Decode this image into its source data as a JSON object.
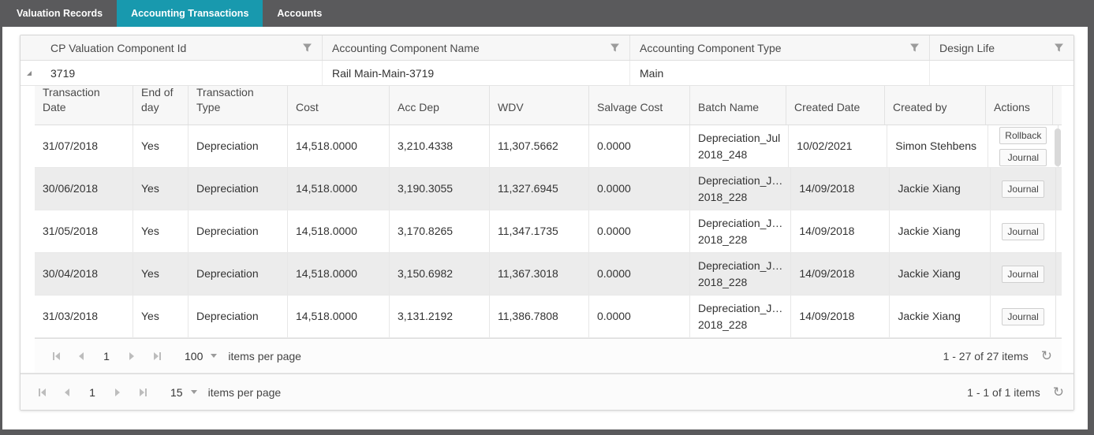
{
  "colors": {
    "accent": "#1899ae",
    "frame": "#5a5a5c"
  },
  "tabs": [
    {
      "label": "Valuation Records"
    },
    {
      "label": "Accounting Transactions"
    },
    {
      "label": "Accounts"
    }
  ],
  "outer_grid": {
    "columns": [
      "CP Valuation Component Id",
      "Accounting Component Name",
      "Accounting Component Type",
      "Design Life"
    ],
    "master_row": {
      "cp_valuation_component_id": "3719",
      "accounting_component_name": "Rail Main-Main-3719",
      "accounting_component_type": "Main",
      "design_life": ""
    },
    "pager": {
      "page": "1",
      "page_size": "15",
      "items_per_page_label": "items per page",
      "info": "1 - 1 of 1 items"
    }
  },
  "inner_grid": {
    "columns": [
      "Transaction Date",
      "End of day",
      "Transaction Type",
      "Cost",
      "Acc Dep",
      "WDV",
      "Salvage Cost",
      "Batch Name",
      "Created Date",
      "Created by",
      "Actions"
    ],
    "rows": [
      {
        "date": "31/07/2018",
        "end_of_day": "Yes",
        "type": "Depreciation",
        "cost": "14,518.0000",
        "acc_dep": "3,210.4338",
        "wdv": "11,307.5662",
        "salvage": "0.0000",
        "batch_line1": "Depreciation_Jul",
        "batch_line2": "2018_248",
        "created_date": "10/02/2021",
        "created_by": "Simon Stehbens",
        "action1": "Rollback",
        "action2": "Journal"
      },
      {
        "date": "30/06/2018",
        "end_of_day": "Yes",
        "type": "Depreciation",
        "cost": "14,518.0000",
        "acc_dep": "3,190.3055",
        "wdv": "11,327.6945",
        "salvage": "0.0000",
        "batch_line1": "Depreciation_J…",
        "batch_line2": "2018_228",
        "created_date": "14/09/2018",
        "created_by": "Jackie Xiang",
        "action1": "Journal"
      },
      {
        "date": "31/05/2018",
        "end_of_day": "Yes",
        "type": "Depreciation",
        "cost": "14,518.0000",
        "acc_dep": "3,170.8265",
        "wdv": "11,347.1735",
        "salvage": "0.0000",
        "batch_line1": "Depreciation_J…",
        "batch_line2": "2018_228",
        "created_date": "14/09/2018",
        "created_by": "Jackie Xiang",
        "action1": "Journal"
      },
      {
        "date": "30/04/2018",
        "end_of_day": "Yes",
        "type": "Depreciation",
        "cost": "14,518.0000",
        "acc_dep": "3,150.6982",
        "wdv": "11,367.3018",
        "salvage": "0.0000",
        "batch_line1": "Depreciation_J…",
        "batch_line2": "2018_228",
        "created_date": "14/09/2018",
        "created_by": "Jackie Xiang",
        "action1": "Journal"
      },
      {
        "date": "31/03/2018",
        "end_of_day": "Yes",
        "type": "Depreciation",
        "cost": "14,518.0000",
        "acc_dep": "3,131.2192",
        "wdv": "11,386.7808",
        "salvage": "0.0000",
        "batch_line1": "Depreciation_J…",
        "batch_line2": "2018_228",
        "created_date": "14/09/2018",
        "created_by": "Jackie Xiang",
        "action1": "Journal"
      }
    ],
    "pager": {
      "page": "1",
      "page_size": "100",
      "items_per_page_label": "items per page",
      "info": "1 - 27 of 27 items"
    }
  }
}
